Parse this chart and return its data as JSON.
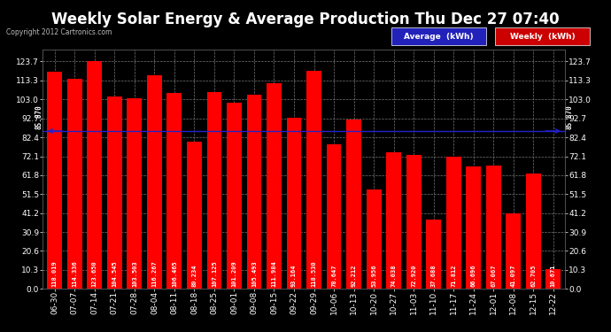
{
  "title": "Weekly Solar Energy & Average Production Thu Dec 27 07:40",
  "copyright": "Copyright 2012 Cartronics.com",
  "categories": [
    "06-30",
    "07-07",
    "07-14",
    "07-21",
    "07-28",
    "08-04",
    "08-11",
    "08-18",
    "08-25",
    "09-01",
    "09-08",
    "09-15",
    "09-22",
    "09-29",
    "10-06",
    "10-13",
    "10-20",
    "10-27",
    "11-03",
    "11-10",
    "11-17",
    "11-24",
    "12-01",
    "12-08",
    "12-15",
    "12-22"
  ],
  "values": [
    118.019,
    114.336,
    123.65,
    104.545,
    103.503,
    116.267,
    106.465,
    80.234,
    107.125,
    101.209,
    105.493,
    111.984,
    93.164,
    118.53,
    78.647,
    92.212,
    53.956,
    74.038,
    72.92,
    37.688,
    71.812,
    66.696,
    67.067,
    41.097,
    62.705,
    10.671
  ],
  "average": 85.87,
  "bar_color": "#ff0000",
  "average_line_color": "#2222cc",
  "background_color": "#000000",
  "plot_bg_color": "#000000",
  "grid_color": "#777777",
  "text_color": "#ffffff",
  "yticks": [
    0.0,
    10.3,
    20.6,
    30.9,
    41.2,
    51.5,
    61.8,
    72.1,
    82.4,
    92.7,
    103.0,
    113.3,
    123.7
  ],
  "legend_avg_color": "#2222bb",
  "legend_weekly_color": "#cc0000",
  "title_fontsize": 12,
  "bar_label_fontsize": 5.0,
  "tick_fontsize": 6.5,
  "avg_label": "85.870",
  "avg_label_fontsize": 5.5,
  "copyright_fontsize": 5.5,
  "legend_fontsize": 6.5
}
